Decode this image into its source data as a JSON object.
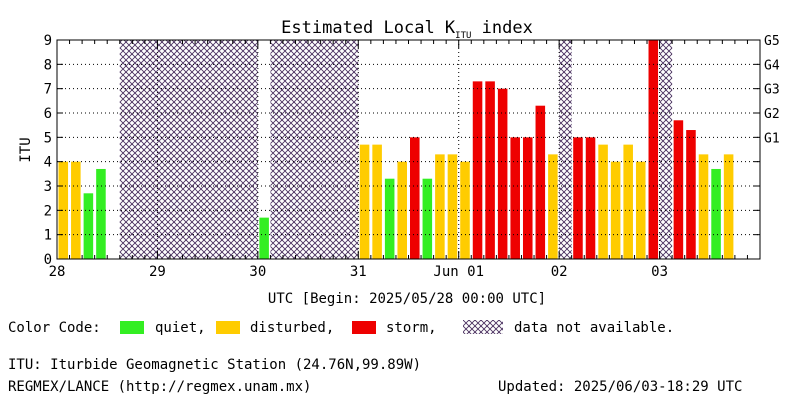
{
  "title_main": "Estimated Local K",
  "title_sub": "ITU",
  "title_tail": " index",
  "colors": {
    "quiet": "#33ee22",
    "disturbed": "#ffcc00",
    "storm": "#ee0000",
    "hatch": "#4a3060"
  },
  "legend": {
    "label": "Color Code:",
    "quiet": "quiet,",
    "disturbed": "disturbed,",
    "storm": "storm,",
    "na": "data not available."
  },
  "footer": {
    "station": "ITU: Iturbide Geomagnetic Station (24.76N,99.89W)",
    "site": "REGMEX/LANCE (http://regmex.unam.mx)",
    "updated": "Updated: 2025/06/03-18:29 UTC"
  },
  "chart_data": {
    "type": "bar",
    "xlabel": "UTC [Begin: 2025/05/28 00:00 UTC]",
    "ylabel": "ITU",
    "ylim": [
      0,
      9
    ],
    "yticks": [
      "0",
      "1",
      "2",
      "3",
      "4",
      "5",
      "6",
      "7",
      "8",
      "9"
    ],
    "right_axis": [
      {
        "label": "G1",
        "at": 5
      },
      {
        "label": "G2",
        "at": 6
      },
      {
        "label": "G3",
        "at": 7
      },
      {
        "label": "G4",
        "at": 8
      },
      {
        "label": "G5",
        "at": 9
      }
    ],
    "day_labels": [
      "28",
      "29",
      "30",
      "31",
      "Jun 01",
      "02",
      "03"
    ],
    "slots_per_day": 8,
    "total_slots": 56,
    "bars": [
      {
        "slot": 0,
        "value": 4.0,
        "cat": "disturbed"
      },
      {
        "slot": 1,
        "value": 4.0,
        "cat": "disturbed"
      },
      {
        "slot": 2,
        "value": 2.7,
        "cat": "quiet"
      },
      {
        "slot": 3,
        "value": 3.7,
        "cat": "quiet"
      },
      {
        "slot": 16,
        "value": 1.7,
        "cat": "quiet"
      },
      {
        "slot": 24,
        "value": 4.7,
        "cat": "disturbed"
      },
      {
        "slot": 25,
        "value": 4.7,
        "cat": "disturbed"
      },
      {
        "slot": 26,
        "value": 3.3,
        "cat": "quiet"
      },
      {
        "slot": 27,
        "value": 4.0,
        "cat": "disturbed"
      },
      {
        "slot": 28,
        "value": 5.0,
        "cat": "storm"
      },
      {
        "slot": 29,
        "value": 3.3,
        "cat": "quiet"
      },
      {
        "slot": 30,
        "value": 4.3,
        "cat": "disturbed"
      },
      {
        "slot": 31,
        "value": 4.3,
        "cat": "disturbed"
      },
      {
        "slot": 32,
        "value": 4.0,
        "cat": "disturbed"
      },
      {
        "slot": 33,
        "value": 7.3,
        "cat": "storm"
      },
      {
        "slot": 34,
        "value": 7.3,
        "cat": "storm"
      },
      {
        "slot": 35,
        "value": 7.0,
        "cat": "storm"
      },
      {
        "slot": 36,
        "value": 5.0,
        "cat": "storm"
      },
      {
        "slot": 37,
        "value": 5.0,
        "cat": "storm"
      },
      {
        "slot": 38,
        "value": 6.3,
        "cat": "storm"
      },
      {
        "slot": 39,
        "value": 4.3,
        "cat": "disturbed"
      },
      {
        "slot": 41,
        "value": 5.0,
        "cat": "storm"
      },
      {
        "slot": 42,
        "value": 5.0,
        "cat": "storm"
      },
      {
        "slot": 43,
        "value": 4.7,
        "cat": "disturbed"
      },
      {
        "slot": 44,
        "value": 4.0,
        "cat": "disturbed"
      },
      {
        "slot": 45,
        "value": 4.7,
        "cat": "disturbed"
      },
      {
        "slot": 46,
        "value": 4.0,
        "cat": "disturbed"
      },
      {
        "slot": 47,
        "value": 9.0,
        "cat": "storm"
      },
      {
        "slot": 49,
        "value": 5.7,
        "cat": "storm"
      },
      {
        "slot": 50,
        "value": 5.3,
        "cat": "storm"
      },
      {
        "slot": 51,
        "value": 4.3,
        "cat": "disturbed"
      },
      {
        "slot": 52,
        "value": 3.7,
        "cat": "quiet"
      },
      {
        "slot": 53,
        "value": 4.3,
        "cat": "disturbed"
      }
    ],
    "na_ranges": [
      [
        5,
        16
      ],
      [
        17,
        24
      ],
      [
        40,
        41
      ],
      [
        48,
        49
      ]
    ]
  }
}
